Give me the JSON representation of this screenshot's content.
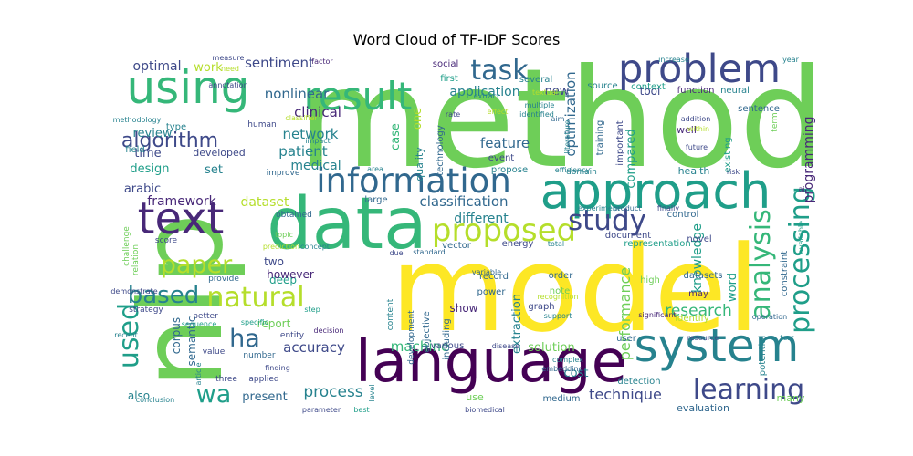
{
  "chart_data": {
    "type": "wordcloud",
    "title": "Word Cloud of TF-IDF Scores",
    "palette": [
      "#fde725",
      "#b5de2b",
      "#6ece58",
      "#35b779",
      "#1f9e89",
      "#26828e",
      "#31688e",
      "#3e4989",
      "#482878",
      "#440154"
    ],
    "words": [
      {
        "text": "method",
        "weight": 1.0
      },
      {
        "text": "model",
        "weight": 0.98
      },
      {
        "text": "nlp",
        "weight": 0.95
      },
      {
        "text": "data",
        "weight": 0.72
      },
      {
        "text": "language",
        "weight": 0.66
      },
      {
        "text": "approach",
        "weight": 0.55
      },
      {
        "text": "using",
        "weight": 0.53
      },
      {
        "text": "system",
        "weight": 0.52
      },
      {
        "text": "text",
        "weight": 0.5
      },
      {
        "text": "problem",
        "weight": 0.44
      },
      {
        "text": "result",
        "weight": 0.43
      },
      {
        "text": "information",
        "weight": 0.38
      },
      {
        "text": "processing",
        "weight": 0.37
      },
      {
        "text": "proposed",
        "weight": 0.35
      },
      {
        "text": "learning",
        "weight": 0.33
      },
      {
        "text": "study",
        "weight": 0.31
      },
      {
        "text": "task",
        "weight": 0.3
      },
      {
        "text": "analysis",
        "weight": 0.3
      },
      {
        "text": "natural",
        "weight": 0.29
      },
      {
        "text": "used",
        "weight": 0.29
      },
      {
        "text": "paper",
        "weight": 0.28
      },
      {
        "text": "based",
        "weight": 0.28
      },
      {
        "text": "wa",
        "weight": 0.27
      },
      {
        "text": "ha",
        "weight": 0.26
      },
      {
        "text": "algorithm",
        "weight": 0.22
      },
      {
        "text": "research",
        "weight": 0.21
      },
      {
        "text": "process",
        "weight": 0.19
      },
      {
        "text": "performance",
        "weight": 0.19
      },
      {
        "text": "technique",
        "weight": 0.18
      },
      {
        "text": "optimization",
        "weight": 0.17
      },
      {
        "text": "classification",
        "weight": 0.17
      },
      {
        "text": "accuracy",
        "weight": 0.17
      },
      {
        "text": "feature",
        "weight": 0.16
      },
      {
        "text": "machine",
        "weight": 0.16
      },
      {
        "text": "knowledge",
        "weight": 0.16
      },
      {
        "text": "programming",
        "weight": 0.16
      },
      {
        "text": "clinical",
        "weight": 0.16
      },
      {
        "text": "network",
        "weight": 0.16
      },
      {
        "text": "nonlinear",
        "weight": 0.15
      },
      {
        "text": "sentiment",
        "weight": 0.15
      },
      {
        "text": "optimal",
        "weight": 0.15
      },
      {
        "text": "application",
        "weight": 0.15
      },
      {
        "text": "patient",
        "weight": 0.15
      },
      {
        "text": "medical",
        "weight": 0.15
      },
      {
        "text": "framework",
        "weight": 0.15
      },
      {
        "text": "dataset",
        "weight": 0.15
      },
      {
        "text": "different",
        "weight": 0.15
      },
      {
        "text": "review",
        "weight": 0.14
      },
      {
        "text": "time",
        "weight": 0.14
      },
      {
        "text": "design",
        "weight": 0.14
      },
      {
        "text": "arabic",
        "weight": 0.13
      },
      {
        "text": "work",
        "weight": 0.13
      },
      {
        "text": "set",
        "weight": 0.13
      },
      {
        "text": "case",
        "weight": 0.13
      },
      {
        "text": "one",
        "weight": 0.13
      },
      {
        "text": "new",
        "weight": 0.13
      },
      {
        "text": "compared",
        "weight": 0.13
      },
      {
        "text": "extraction",
        "weight": 0.13
      },
      {
        "text": "word",
        "weight": 0.13
      },
      {
        "text": "solution",
        "weight": 0.13
      },
      {
        "text": "cost",
        "weight": 0.13
      },
      {
        "text": "present",
        "weight": 0.13
      },
      {
        "text": "also",
        "weight": 0.12
      },
      {
        "text": "corpus",
        "weight": 0.12
      },
      {
        "text": "report",
        "weight": 0.12
      },
      {
        "text": "two",
        "weight": 0.12
      },
      {
        "text": "deep",
        "weight": 0.12
      },
      {
        "text": "however",
        "weight": 0.12
      },
      {
        "text": "show",
        "weight": 0.12
      },
      {
        "text": "semantic",
        "weight": 0.12
      },
      {
        "text": "tool",
        "weight": 0.12
      },
      {
        "text": "well",
        "weight": 0.11
      },
      {
        "text": "health",
        "weight": 0.11
      },
      {
        "text": "evaluation",
        "weight": 0.11
      },
      {
        "text": "many",
        "weight": 0.11
      },
      {
        "text": "use",
        "weight": 0.11
      },
      {
        "text": "developed",
        "weight": 0.11
      },
      {
        "text": "quality",
        "weight": 0.1
      },
      {
        "text": "function",
        "weight": 0.1
      },
      {
        "text": "neural",
        "weight": 0.1
      },
      {
        "text": "representation",
        "weight": 0.1
      },
      {
        "text": "objective",
        "weight": 0.1
      },
      {
        "text": "including",
        "weight": 0.1
      },
      {
        "text": "various",
        "weight": 0.1
      },
      {
        "text": "high",
        "weight": 0.1
      },
      {
        "text": "existing",
        "weight": 0.1
      },
      {
        "text": "potential",
        "weight": 0.1
      },
      {
        "text": "constraint",
        "weight": 0.1
      },
      {
        "text": "novel",
        "weight": 0.1
      },
      {
        "text": "identify",
        "weight": 0.1
      },
      {
        "text": "may",
        "weight": 0.1
      },
      {
        "text": "user",
        "weight": 0.1
      },
      {
        "text": "detection",
        "weight": 0.1
      },
      {
        "text": "medium",
        "weight": 0.1
      },
      {
        "text": "order",
        "weight": 0.1
      },
      {
        "text": "note",
        "weight": 0.1
      },
      {
        "text": "power",
        "weight": 0.1
      },
      {
        "text": "record",
        "weight": 0.1
      },
      {
        "text": "graph",
        "weight": 0.1
      },
      {
        "text": "control",
        "weight": 0.1
      },
      {
        "text": "document",
        "weight": 0.1
      },
      {
        "text": "datasets",
        "weight": 0.1
      },
      {
        "text": "energy",
        "weight": 0.1
      },
      {
        "text": "vector",
        "weight": 0.1
      },
      {
        "text": "large",
        "weight": 0.1
      },
      {
        "text": "technology",
        "weight": 0.1
      },
      {
        "text": "event",
        "weight": 0.1
      },
      {
        "text": "propose",
        "weight": 0.1
      },
      {
        "text": "social",
        "weight": 0.1
      },
      {
        "text": "first",
        "weight": 0.1
      },
      {
        "text": "several",
        "weight": 0.1
      },
      {
        "text": "source",
        "weight": 0.1
      },
      {
        "text": "context",
        "weight": 0.1
      },
      {
        "text": "sentence",
        "weight": 0.1
      },
      {
        "text": "training",
        "weight": 0.1
      },
      {
        "text": "important",
        "weight": 0.1
      },
      {
        "text": "type",
        "weight": 0.1
      },
      {
        "text": "field",
        "weight": 0.1
      },
      {
        "text": "human",
        "weight": 0.1
      },
      {
        "text": "improve",
        "weight": 0.1
      },
      {
        "text": "obtained",
        "weight": 0.1
      },
      {
        "text": "score",
        "weight": 0.1
      },
      {
        "text": "challenge",
        "weight": 0.1
      },
      {
        "text": "relation",
        "weight": 0.1
      },
      {
        "text": "provide",
        "weight": 0.1
      },
      {
        "text": "strategy",
        "weight": 0.1
      },
      {
        "text": "better",
        "weight": 0.1
      },
      {
        "text": "value",
        "weight": 0.1
      },
      {
        "text": "number",
        "weight": 0.1
      },
      {
        "text": "three",
        "weight": 0.1
      },
      {
        "text": "applied",
        "weight": 0.1
      },
      {
        "text": "entity",
        "weight": 0.1
      },
      {
        "text": "content",
        "weight": 0.1
      },
      {
        "text": "development",
        "weight": 0.1
      },
      {
        "text": "domain",
        "weight": 0.1
      },
      {
        "text": "term",
        "weight": 0.1
      },
      {
        "text": "future",
        "weight": 0.1
      },
      {
        "text": "addition",
        "weight": 0.1
      },
      {
        "text": "within",
        "weight": 0.1
      },
      {
        "text": "risk",
        "weight": 0.1
      },
      {
        "text": "efficiency",
        "weight": 0.1
      },
      {
        "text": "rate",
        "weight": 0.1
      },
      {
        "text": "effect",
        "weight": 0.1
      },
      {
        "text": "multiple",
        "weight": 0.1
      },
      {
        "text": "identified",
        "weight": 0.1
      },
      {
        "text": "textual",
        "weight": 0.1
      },
      {
        "text": "extract",
        "weight": 0.1
      },
      {
        "text": "increase",
        "weight": 0.1
      },
      {
        "text": "year",
        "weight": 0.1
      },
      {
        "text": "factor",
        "weight": 0.1
      },
      {
        "text": "need",
        "weight": 0.1
      },
      {
        "text": "annotation",
        "weight": 0.1
      },
      {
        "text": "methodology",
        "weight": 0.1
      },
      {
        "text": "classifier",
        "weight": 0.1
      },
      {
        "text": "impact",
        "weight": 0.1
      },
      {
        "text": "area",
        "weight": 0.1
      },
      {
        "text": "literature",
        "weight": 0.1
      },
      {
        "text": "aim",
        "weight": 0.1
      },
      {
        "text": "experiment",
        "weight": 0.1
      },
      {
        "text": "product",
        "weight": 0.1
      },
      {
        "text": "finally",
        "weight": 0.1
      },
      {
        "text": "prediction",
        "weight": 0.1
      },
      {
        "text": "concept",
        "weight": 0.1
      },
      {
        "text": "standard",
        "weight": 0.1
      },
      {
        "text": "total",
        "weight": 0.1
      },
      {
        "text": "variable",
        "weight": 0.1
      },
      {
        "text": "recognition",
        "weight": 0.1
      },
      {
        "text": "support",
        "weight": 0.1
      },
      {
        "text": "significant",
        "weight": 0.1
      },
      {
        "text": "operation",
        "weight": 0.1
      },
      {
        "text": "resource",
        "weight": 0.1
      },
      {
        "text": "test",
        "weight": 0.1
      },
      {
        "text": "disease",
        "weight": 0.1
      },
      {
        "text": "decision",
        "weight": 0.1
      },
      {
        "text": "complex",
        "weight": 0.1
      },
      {
        "text": "embedding",
        "weight": 0.1
      },
      {
        "text": "level",
        "weight": 0.1
      },
      {
        "text": "biomedical",
        "weight": 0.1
      },
      {
        "text": "parameter",
        "weight": 0.1
      },
      {
        "text": "best",
        "weight": 0.1
      },
      {
        "text": "finding",
        "weight": 0.1
      },
      {
        "text": "article",
        "weight": 0.1
      },
      {
        "text": "sequence",
        "weight": 0.1
      },
      {
        "text": "specific",
        "weight": 0.1
      },
      {
        "text": "recent",
        "weight": 0.1
      },
      {
        "text": "demonstrate",
        "weight": 0.1
      },
      {
        "text": "conclusion",
        "weight": 0.1
      },
      {
        "text": "due",
        "weight": 0.1
      },
      {
        "text": "step",
        "weight": 0.1
      },
      {
        "text": "measure",
        "weight": 0.1
      },
      {
        "text": "available",
        "weight": 0.1
      },
      {
        "text": "topic",
        "weight": 0.1
      },
      {
        "text": "ai",
        "weight": 0.1
      }
    ]
  }
}
